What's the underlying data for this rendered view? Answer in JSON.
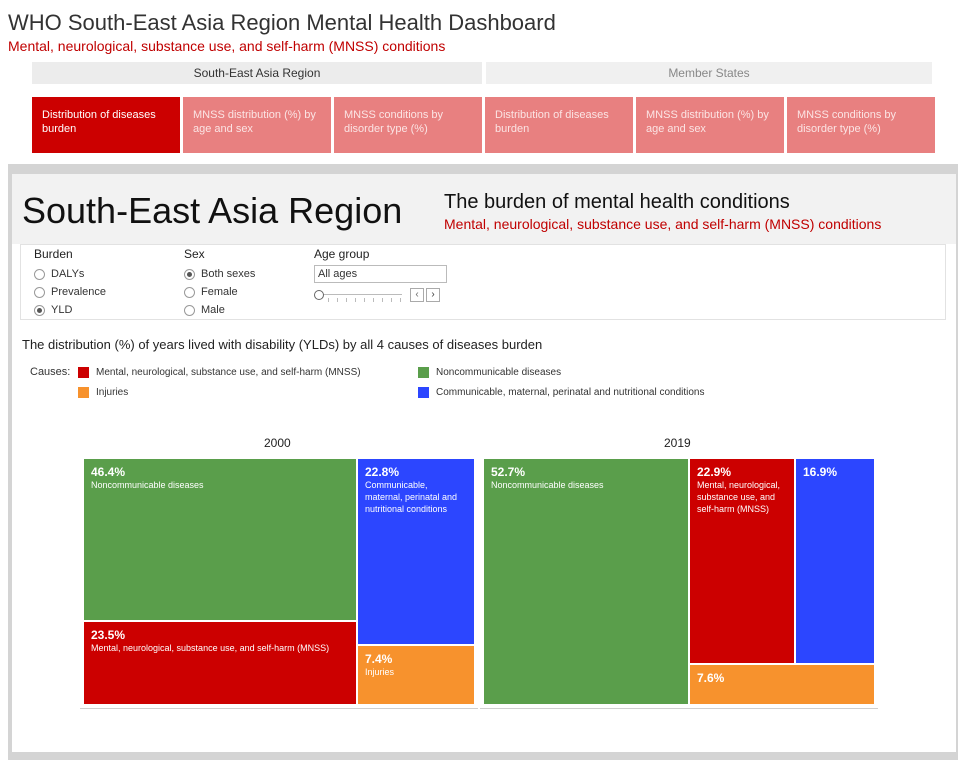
{
  "header": {
    "title": "WHO South-East Asia Region Mental Health Dashboard",
    "subtitle": "Mental, neurological, substance use, and self-harm (MNSS) conditions"
  },
  "region_tabs": [
    {
      "label": "South-East Asia Region",
      "active": true
    },
    {
      "label": "Member States",
      "active": false
    }
  ],
  "sub_tabs": [
    {
      "label": "Distribution of diseases burden",
      "active": true
    },
    {
      "label": "MNSS distribution (%) by age and sex",
      "active": false
    },
    {
      "label": "MNSS conditions by disorder type (%)",
      "active": false
    },
    {
      "label": "Distribution of diseases burden",
      "active": false
    },
    {
      "label": "MNSS distribution (%) by age and sex",
      "active": false
    },
    {
      "label": "MNSS conditions by disorder type (%)",
      "active": false
    }
  ],
  "panel": {
    "region_title": "South-East Asia Region",
    "burden_title": "The burden of mental health conditions",
    "burden_subtitle": "Mental, neurological, substance use, and self-harm (MNSS) conditions"
  },
  "filters": {
    "burden": {
      "label": "Burden",
      "options": [
        "DALYs",
        "Prevalence",
        "YLD"
      ],
      "selected": "YLD"
    },
    "sex": {
      "label": "Sex",
      "options": [
        "Both sexes",
        "Female",
        "Male"
      ],
      "selected": "Both sexes"
    },
    "age_group": {
      "label": "Age group",
      "value": "All ages",
      "prev_icon": "chevron-left",
      "next_icon": "chevron-right"
    }
  },
  "chart_data": {
    "type": "treemap",
    "title": "The distribution (%) of years lived with disability (YLDs) by all 4 causes of diseases burden",
    "legend_label": "Causes:",
    "legend": [
      {
        "name": "Mental, neurological, substance use, and self-harm (MNSS)",
        "color": "#cc0000"
      },
      {
        "name": "Noncommunicable diseases",
        "color": "#5a9e4b"
      },
      {
        "name": "Injuries",
        "color": "#f7922d"
      },
      {
        "name": "Communicable, maternal, perinatal and nutritional conditions",
        "color": "#2c46ff"
      }
    ],
    "panels": [
      {
        "year": "2000",
        "tiles": [
          {
            "pct": "46.4%",
            "label": "Noncommunicable diseases",
            "color": "#5a9e4b"
          },
          {
            "pct": "23.5%",
            "label": "Mental, neurological, substance use, and self-harm (MNSS)",
            "color": "#cc0000"
          },
          {
            "pct": "22.8%",
            "label": "Communicable, maternal, perinatal and nutritional conditions",
            "color": "#2c46ff"
          },
          {
            "pct": "7.4%",
            "label": "Injuries",
            "color": "#f7922d"
          }
        ]
      },
      {
        "year": "2019",
        "tiles": [
          {
            "pct": "52.7%",
            "label": "Noncommunicable diseases",
            "color": "#5a9e4b"
          },
          {
            "pct": "22.9%",
            "label": "Mental, neurological, substance use, and self-harm (MNSS)",
            "color": "#cc0000"
          },
          {
            "pct": "16.9%",
            "label": "",
            "color": "#2c46ff"
          },
          {
            "pct": "7.6%",
            "label": "",
            "color": "#f7922d"
          }
        ]
      }
    ]
  }
}
